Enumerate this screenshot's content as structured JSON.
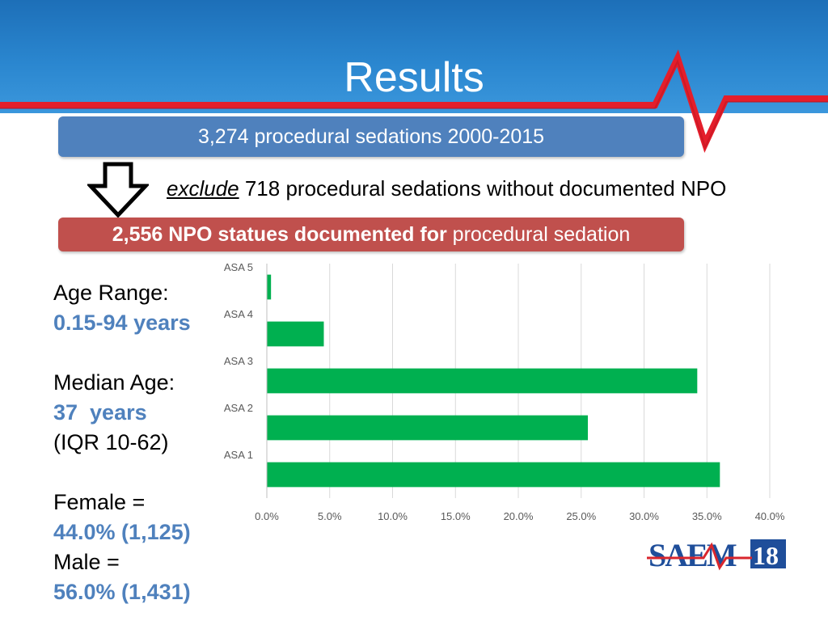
{
  "title": "Results",
  "box_top": "3,274 procedural sedations 2000-2015",
  "exclude": {
    "keyword": "exclude",
    "rest": " 718 procedural sedations without documented NPO"
  },
  "box_red": {
    "bold": "2,556 NPO statues documented for",
    "rest": " procedural sedation"
  },
  "stats": {
    "age_label": "Age Range:",
    "age_value": "0.15-94 years",
    "median_label": "Median Age:",
    "median_value": "37  years",
    "iqr": "(IQR 10-62)",
    "female_label": "Female =",
    "female_value": "44.0% (1,125)",
    "male_label": "Male =",
    "male_value": "56.0% (1,431)"
  },
  "colors": {
    "header": "#2a86cf",
    "accent_red": "#c0504d",
    "accent_blue": "#4f81bd",
    "bar": "#00b050"
  },
  "chart_data": {
    "type": "bar",
    "orientation": "horizontal",
    "categories": [
      "ASA 5",
      "ASA 4",
      "ASA 3",
      "ASA 2",
      "ASA 1"
    ],
    "values": [
      0.3,
      4.5,
      34.2,
      25.5,
      36.0
    ],
    "xlim": [
      0,
      40
    ],
    "ticks": [
      "0.0%",
      "5.0%",
      "10.0%",
      "15.0%",
      "20.0%",
      "25.0%",
      "30.0%",
      "35.0%",
      "40.0%"
    ],
    "grid": true,
    "title": "",
    "xlabel": "",
    "ylabel": ""
  },
  "logo": {
    "text": "SAEM18"
  }
}
